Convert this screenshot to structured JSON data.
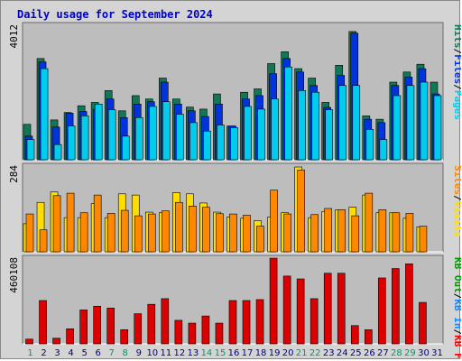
{
  "title": "Daily usage for September 2024",
  "colors": {
    "pages": "#00ccee",
    "files": "#0033dd",
    "hits": "#117755",
    "visits": "#ffdd00",
    "sites": "#ff8800",
    "kbf": "#dd0000",
    "label_kb_f": "#ff0000",
    "label_in": "#1188ff",
    "label_out": "#009900",
    "weekend": "#009966",
    "weekday": "#000080",
    "title": "#0000cc"
  },
  "chart_data": [
    {
      "type": "bar",
      "title": "Daily usage for September 2024",
      "categories": [
        "1",
        "2",
        "3",
        "4",
        "5",
        "6",
        "7",
        "8",
        "9",
        "10",
        "11",
        "12",
        "13",
        "14",
        "15",
        "16",
        "17",
        "18",
        "19",
        "20",
        "21",
        "22",
        "23",
        "24",
        "25",
        "26",
        "27",
        "28",
        "29",
        "30",
        "31"
      ],
      "weekend_days": [
        1,
        7,
        8,
        14,
        15,
        21,
        22,
        28,
        29
      ],
      "ylim": [
        0,
        4012
      ],
      "y_tick_label": "4012",
      "right_axis_labels": [
        {
          "text": "Pages",
          "color": "#00ccee"
        },
        {
          "text": "Files",
          "color": "#0033dd"
        },
        {
          "text": "Hits",
          "color": "#117755"
        }
      ],
      "series": [
        {
          "name": "Hits",
          "values": [
            1050,
            3000,
            1180,
            1400,
            1600,
            1700,
            2050,
            1450,
            1900,
            1800,
            2420,
            1800,
            1560,
            1500,
            1950,
            1000,
            2000,
            2100,
            2850,
            3200,
            2700,
            2420,
            1700,
            2800,
            3800,
            1300,
            1200,
            2300,
            2600,
            2830,
            2300
          ]
        },
        {
          "name": "Files",
          "values": [
            700,
            2900,
            970,
            1380,
            1430,
            1500,
            1800,
            1250,
            1650,
            1720,
            2300,
            1650,
            1450,
            1280,
            1650,
            1000,
            1800,
            1900,
            2550,
            3000,
            2600,
            2200,
            1550,
            2500,
            3750,
            1200,
            1100,
            2200,
            2450,
            2700,
            1950
          ]
        },
        {
          "name": "Pages",
          "values": [
            600,
            2700,
            450,
            1000,
            1300,
            1650,
            1480,
            700,
            1250,
            1580,
            1720,
            1350,
            1100,
            850,
            1030,
            950,
            1580,
            1500,
            1800,
            2750,
            2050,
            2000,
            1480,
            2200,
            2200,
            900,
            600,
            1900,
            2200,
            2300,
            1900
          ]
        }
      ]
    },
    {
      "type": "bar",
      "ylim": [
        0,
        284
      ],
      "y_tick_label": "284",
      "right_axis_labels": [
        {
          "text": "Visits",
          "color": "#ffdd00"
        },
        {
          "text": "Sites",
          "color": "#ff8800"
        }
      ],
      "series": [
        {
          "name": "Visits",
          "values": [
            92,
            162,
            196,
            112,
            112,
            158,
            112,
            190,
            186,
            130,
            128,
            194,
            190,
            160,
            130,
            114,
            110,
            102,
            114,
            128,
            278,
            112,
            132,
            138,
            146,
            186,
            128,
            128,
            110,
            82,
            0
          ]
        },
        {
          "name": "Sites",
          "values": [
            124,
            72,
            184,
            192,
            128,
            186,
            126,
            136,
            118,
            124,
            134,
            162,
            150,
            146,
            125,
            124,
            120,
            84,
            202,
            124,
            268,
            122,
            142,
            138,
            118,
            192,
            138,
            128,
            126,
            84,
            0
          ]
        }
      ]
    },
    {
      "type": "bar",
      "ylim": [
        0,
        460108
      ],
      "y_tick_label": "460108",
      "right_axis_labels": [
        {
          "text": "KB F",
          "color": "#ff0000"
        },
        {
          "text": "KB In",
          "color": "#1188ff"
        },
        {
          "text": "KB Out",
          "color": "#009900"
        }
      ],
      "series": [
        {
          "name": "KB F",
          "values": [
            25000,
            230000,
            30000,
            80000,
            180000,
            200000,
            190000,
            75000,
            160000,
            210000,
            240000,
            125000,
            110000,
            148000,
            110000,
            230000,
            230000,
            235000,
            455000,
            360000,
            345000,
            240000,
            375000,
            375000,
            97000,
            75000,
            350000,
            400000,
            425000,
            220000,
            0
          ]
        }
      ]
    }
  ]
}
